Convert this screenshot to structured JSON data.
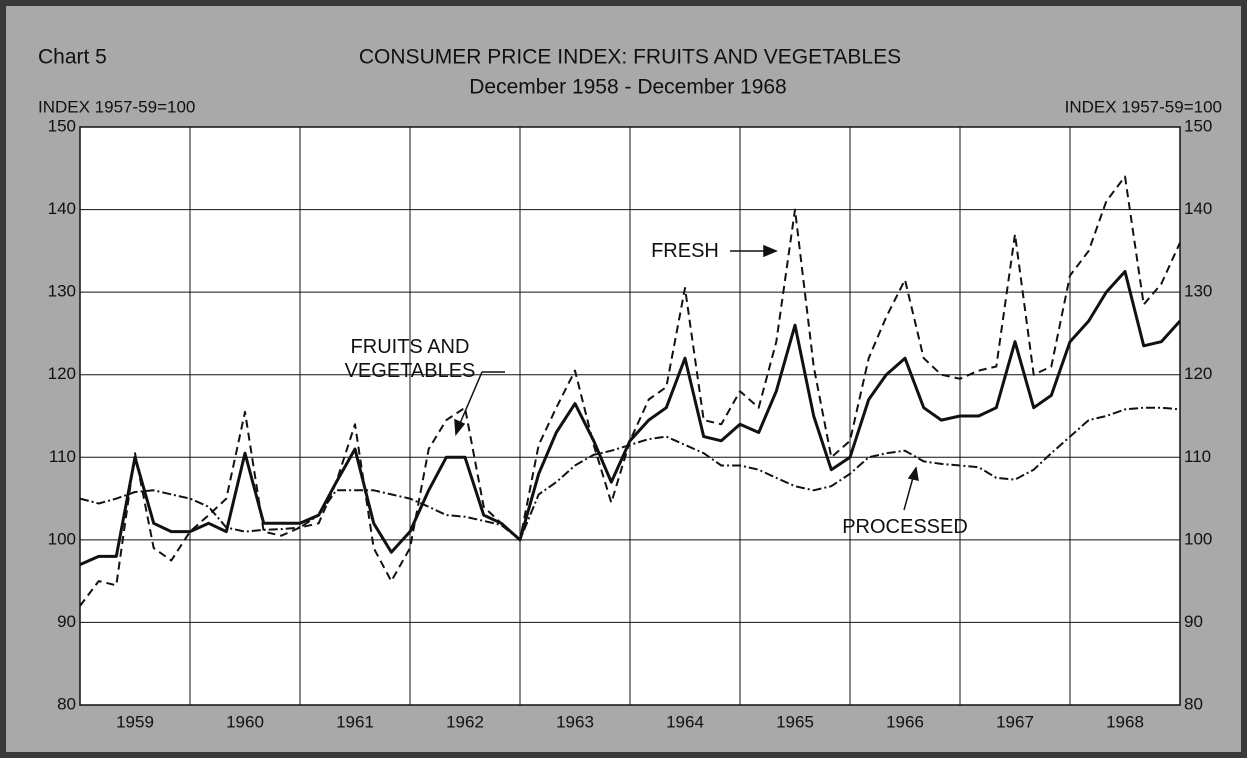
{
  "chart_data": {
    "type": "line",
    "chart_label": "Chart 5",
    "title": "CONSUMER PRICE INDEX: FRUITS AND VEGETABLES",
    "subtitle": "December 1958 - December 1968",
    "y_label": "INDEX 1957-59=100",
    "y2_label": "INDEX 1957-59=100",
    "categories": [
      "1959",
      "1960",
      "1961",
      "1962",
      "1963",
      "1964",
      "1965",
      "1966",
      "1967",
      "1968"
    ],
    "xlim": [
      1959,
      1969
    ],
    "ylim": [
      80,
      150
    ],
    "yticks": [
      80,
      90,
      100,
      110,
      120,
      130,
      140,
      150
    ],
    "y2lim": [
      80,
      150
    ],
    "y2ticks": [
      80,
      90,
      100,
      110,
      120,
      130,
      140,
      150
    ],
    "grid": true,
    "x": [
      1959,
      1959.17,
      1959.33,
      1959.5,
      1959.67,
      1959.83,
      1960,
      1960.17,
      1960.33,
      1960.5,
      1960.67,
      1960.83,
      1961,
      1961.17,
      1961.33,
      1961.5,
      1961.67,
      1961.83,
      1962,
      1962.17,
      1962.33,
      1962.5,
      1962.67,
      1962.83,
      1963,
      1963.17,
      1963.33,
      1963.5,
      1963.67,
      1963.83,
      1964,
      1964.17,
      1964.33,
      1964.5,
      1964.67,
      1964.83,
      1965,
      1965.17,
      1965.33,
      1965.5,
      1965.67,
      1965.83,
      1966,
      1966.17,
      1966.33,
      1966.5,
      1966.67,
      1966.83,
      1967,
      1967.17,
      1967.33,
      1967.5,
      1967.67,
      1967.83,
      1968,
      1968.17,
      1968.33,
      1968.5,
      1968.67,
      1968.83,
      1969
    ],
    "series": [
      {
        "name": "FRESH",
        "color": "#111111",
        "dash": "8,5",
        "values": [
          92,
          95,
          94.5,
          110.5,
          99,
          97.5,
          101,
          103,
          105,
          115.5,
          101,
          100.5,
          101.5,
          102,
          107,
          114,
          99,
          95,
          99,
          111,
          114.5,
          116,
          104,
          102,
          100,
          111.5,
          116,
          120.5,
          111.5,
          104.5,
          112,
          117,
          118.5,
          130.5,
          114.5,
          114,
          118,
          116,
          124,
          140,
          121,
          110,
          112,
          122,
          127,
          131.5,
          122,
          120,
          119.5,
          120.5,
          121,
          137,
          120,
          121,
          132,
          135,
          141,
          144,
          128.5,
          131,
          136
        ]
      },
      {
        "name": "FRUITS AND VEGETABLES",
        "color": "#111111",
        "dash": "none",
        "values": [
          97,
          98,
          98,
          110,
          102,
          101,
          101,
          102,
          101,
          110.5,
          102,
          102,
          102,
          103,
          107,
          111,
          102,
          98.5,
          101,
          106,
          110,
          110,
          103,
          102,
          100,
          108,
          113,
          116.5,
          112,
          107,
          112,
          114.5,
          116,
          122,
          112.5,
          112,
          114,
          113,
          118,
          126,
          115,
          108.5,
          110,
          117,
          120,
          122,
          116,
          114.5,
          115,
          115,
          116,
          124,
          116,
          117.5,
          124,
          126.5,
          130,
          132.5,
          123.5,
          124,
          126.5
        ]
      },
      {
        "name": "PROCESSED",
        "color": "#111111",
        "dash": "9,3,2,3",
        "values": [
          105,
          104.4,
          105,
          105.8,
          106,
          105.5,
          105,
          104,
          101.5,
          101,
          101.2,
          101.3,
          101.5,
          103,
          106,
          106,
          106,
          105.5,
          105,
          104,
          103,
          102.8,
          102.3,
          101.8,
          100,
          105.5,
          107,
          109,
          110.3,
          110.8,
          111.5,
          112.2,
          112.5,
          111.5,
          110.5,
          109,
          109,
          108.5,
          107.5,
          106.5,
          106,
          106.5,
          108,
          110,
          110.5,
          110.8,
          109.5,
          109.2,
          109,
          108.8,
          107.5,
          107.3,
          108.5,
          110.5,
          112.5,
          114.5,
          115,
          115.8,
          116,
          116,
          115.8
        ]
      }
    ]
  }
}
